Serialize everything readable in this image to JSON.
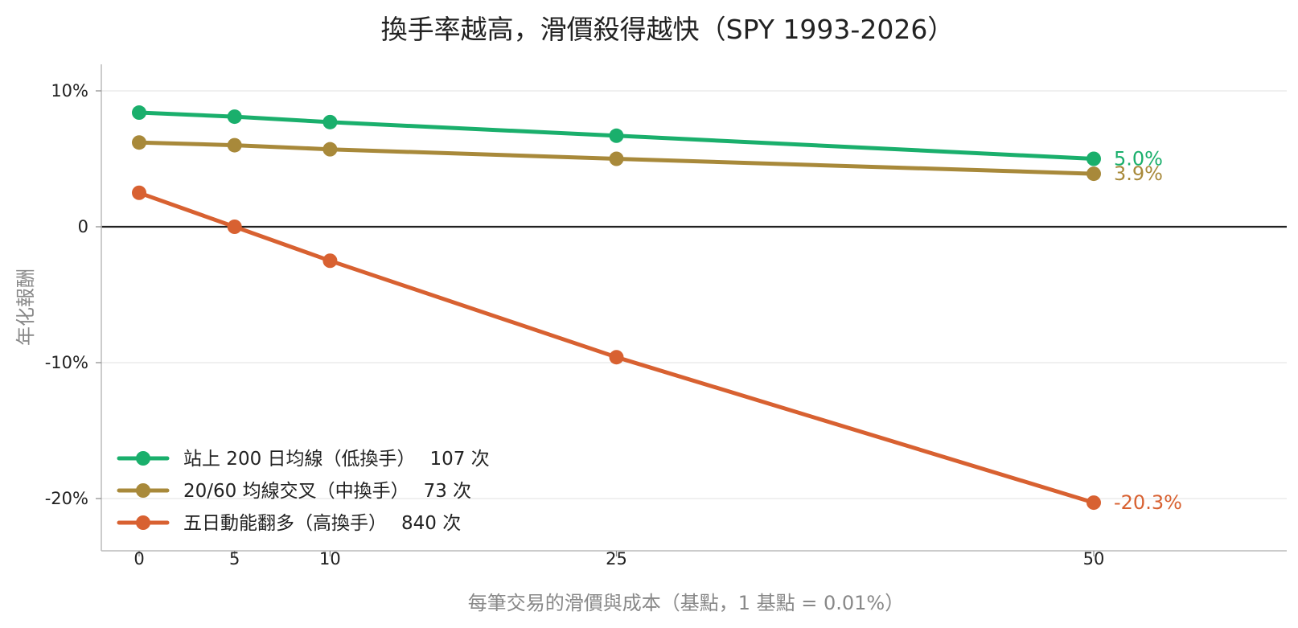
{
  "chart_data": {
    "type": "line",
    "title": "換手率越高，滑價殺得越快（SPY 1993-2026）",
    "xlabel": "每筆交易的滑價與成本（基點，1 基點 = 0.01%）",
    "ylabel": "年化報酬",
    "x": [
      0,
      5,
      10,
      25,
      50
    ],
    "x_ticks": [
      "0",
      "5",
      "10",
      "25",
      "50"
    ],
    "xlim": [
      -2,
      60
    ],
    "ylim": [
      -24,
      12
    ],
    "y_ticks": [
      {
        "value": 10,
        "label": "10%"
      },
      {
        "value": 0,
        "label": "0"
      },
      {
        "value": -10,
        "label": "-10%"
      },
      {
        "value": -20,
        "label": "-20%"
      }
    ],
    "grid": "horizontal",
    "zero_line": true,
    "legend_position": "lower-left",
    "series": [
      {
        "name": "站上 200 日均線（低換手）",
        "count_label": "107 次",
        "color": "#1aaf6c",
        "values": [
          8.4,
          8.1,
          7.7,
          6.7,
          5.0
        ],
        "end_label": "5.0%"
      },
      {
        "name": "20/60 均線交叉（中換手）",
        "count_label": "73 次",
        "color": "#a8893a",
        "values": [
          6.2,
          6.0,
          5.7,
          5.0,
          3.9
        ],
        "end_label": "3.9%"
      },
      {
        "name": "五日動能翻多（高換手）",
        "count_label": "840 次",
        "color": "#d86131",
        "values": [
          2.5,
          0.0,
          -2.5,
          -9.6,
          -20.3
        ],
        "end_label": "-20.3%"
      }
    ]
  }
}
